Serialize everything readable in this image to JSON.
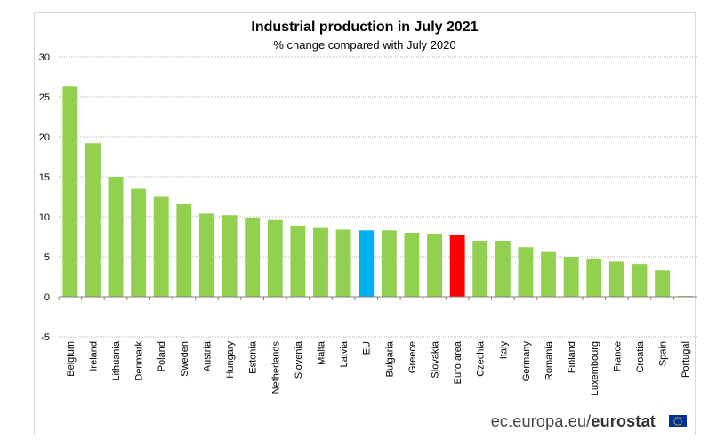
{
  "chart_data": {
    "type": "bar",
    "title": "Industrial production in July 2021",
    "subtitle": "% change compared with July 2020",
    "xlabel": "",
    "ylabel": "",
    "ylim": [
      -5,
      30
    ],
    "yticks": [
      30,
      25,
      20,
      15,
      10,
      5,
      0,
      -5
    ],
    "grid": true,
    "categories": [
      "Belgium",
      "Ireland",
      "Lithuania",
      "Denmark",
      "Poland",
      "Sweden",
      "Austria",
      "Hungary",
      "Estonia",
      "Netherlands",
      "Slovenia",
      "Malta",
      "Latvia",
      "EU",
      "Bulgaria",
      "Greece",
      "Slovakia",
      "Euro area",
      "Czechia",
      "Italy",
      "Germany",
      "Romania",
      "Finland",
      "Luxembourg",
      "France",
      "Croatia",
      "Spain",
      "Portugal"
    ],
    "values": [
      26.3,
      19.2,
      15.0,
      13.5,
      12.5,
      11.6,
      10.4,
      10.2,
      9.9,
      9.7,
      8.9,
      8.6,
      8.4,
      8.3,
      8.3,
      8.0,
      7.9,
      7.7,
      7.0,
      7.0,
      6.2,
      5.6,
      5.0,
      4.8,
      4.4,
      4.1,
      3.3,
      0.1
    ],
    "colors": {
      "default": "#92d050",
      "EU": "#00b0f0",
      "Euro area": "#ff0000"
    }
  },
  "footer": {
    "source_prefix": "ec.europa.eu/",
    "source_brand": "eurostat"
  },
  "colors": {
    "grid": "#bfbfbf",
    "axis": "#808080",
    "text": "#000000",
    "flag_blue": "#003399",
    "flag_star": "#ffcc00"
  }
}
